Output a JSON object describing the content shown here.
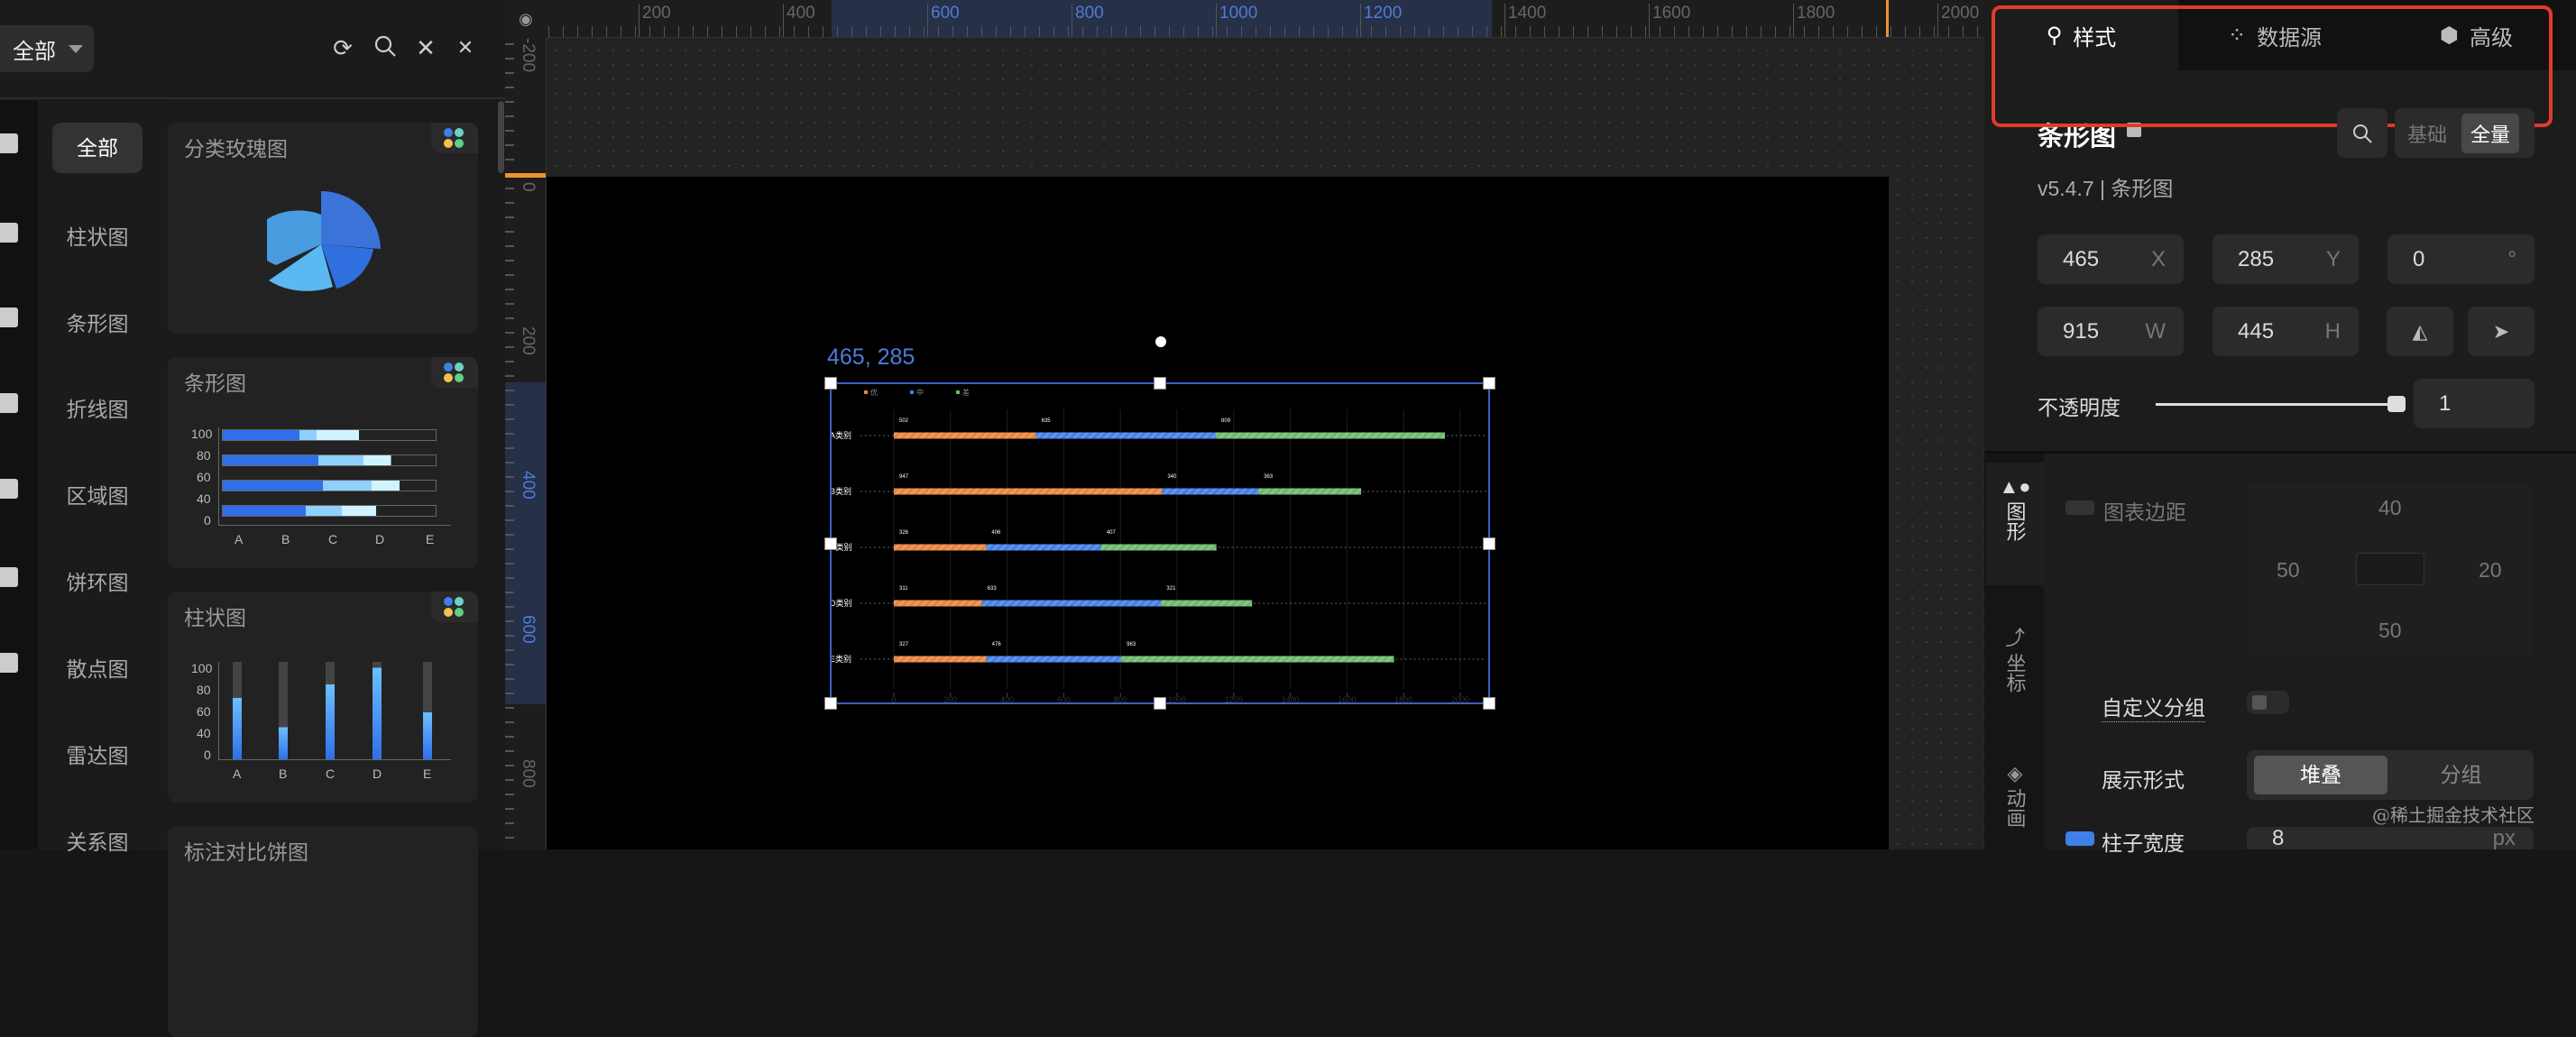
{
  "left_panel": {
    "filter": "全部",
    "toolbar_icons": [
      "refresh-icon",
      "search-icon",
      "unpin-icon",
      "close-icon"
    ],
    "side_icons": [
      "bar-chart-icon",
      "map-icon",
      "text-icon",
      "table-icon",
      "media-icon",
      "video-icon",
      "more-icon"
    ],
    "categories": [
      "全部",
      "柱状图",
      "条形图",
      "折线图",
      "区域图",
      "饼环图",
      "散点图",
      "雷达图",
      "关系图"
    ],
    "cards": [
      {
        "title": "分类玫瑰图"
      },
      {
        "title": "条形图",
        "y_ticks": [
          "100",
          "80",
          "60",
          "40",
          "0"
        ],
        "x_ticks": [
          "A",
          "B",
          "C",
          "D",
          "E"
        ]
      },
      {
        "title": "柱状图",
        "y_ticks": [
          "100",
          "80",
          "60",
          "40",
          "0"
        ],
        "x_ticks": [
          "A",
          "B",
          "C",
          "D",
          "E"
        ]
      },
      {
        "title": "标注对比饼图"
      }
    ]
  },
  "rulers": {
    "top": [
      "200",
      "400",
      "600",
      "800",
      "1000",
      "1200",
      "1400",
      "1600",
      "1800",
      "2000"
    ],
    "left": [
      "-200",
      "0",
      "200",
      "400",
      "600",
      "800"
    ]
  },
  "canvas": {
    "coords_label": "465, 285"
  },
  "chart_data": {
    "type": "bar",
    "orientation": "horizontal",
    "stacked": true,
    "categories": [
      "A类别",
      "B类别",
      "C类别",
      "D类别",
      "E类别"
    ],
    "series": [
      {
        "name": "优",
        "color": "#e8843a",
        "values": [
          502,
          947,
          326,
          311,
          327
        ]
      },
      {
        "name": "中",
        "color": "#3f7fe8",
        "values": [
          635,
          340,
          406,
          633,
          476
        ]
      },
      {
        "name": "差",
        "color": "#6cb86a",
        "values": [
          809,
          363,
          407,
          321,
          963
        ]
      }
    ],
    "xlim": [
      0,
      2000
    ],
    "x_ticks": [
      "0",
      "200",
      "400",
      "600",
      "800",
      "1000",
      "1200",
      "1400",
      "1600",
      "1800",
      "2000"
    ],
    "grid": true,
    "legend": "top-left",
    "data_labels": true
  },
  "right_panel": {
    "tabs": [
      {
        "label": "样式",
        "icon": "sliders-icon"
      },
      {
        "label": "数据源",
        "icon": "dots-icon"
      },
      {
        "label": "高级",
        "icon": "cube-icon"
      }
    ],
    "title": "条形图",
    "version": "v5.4.7 | 条形图",
    "mode": {
      "basic": "基础",
      "full": "全量"
    },
    "x": {
      "value": "465",
      "unit": "X"
    },
    "y": {
      "value": "285",
      "unit": "Y"
    },
    "rotation": {
      "value": "0",
      "unit": "°"
    },
    "w": {
      "value": "915",
      "unit": "W"
    },
    "h": {
      "value": "445",
      "unit": "H"
    },
    "opacity": {
      "label": "不透明度",
      "value": "1",
      "level": 1
    },
    "side_tabs": [
      "图形",
      "坐标",
      "动画"
    ],
    "margin": {
      "label": "图表边距",
      "top": "40",
      "left": "50",
      "right": "20",
      "bottom": "50"
    },
    "custom_group": {
      "label": "自定义分组"
    },
    "display_mode": {
      "label": "展示形式",
      "options": [
        "堆叠",
        "分组"
      ],
      "selected": "堆叠"
    },
    "bar_width": {
      "label": "柱子宽度",
      "value": "8",
      "unit": "px"
    },
    "watermark": "@稀土掘金技术社区"
  }
}
